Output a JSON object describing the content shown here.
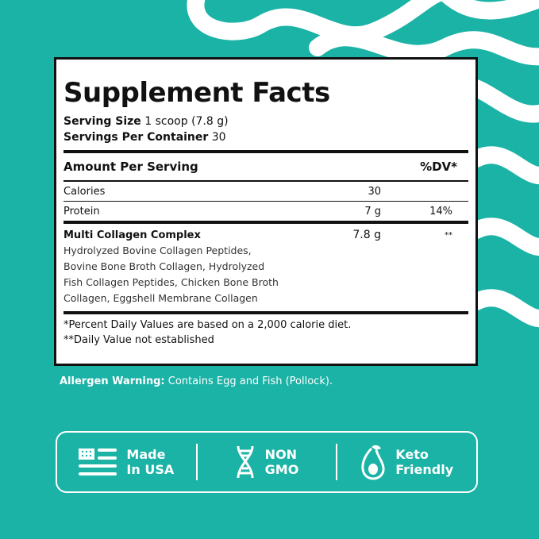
{
  "colors": {
    "background": "#1ab3a6",
    "panel": "#ffffff",
    "text": "#111111"
  },
  "facts": {
    "title": "Supplement Facts",
    "serving_size_label": "Serving Size",
    "serving_size_value": "1 scoop (7.8 g)",
    "servings_label": "Servings Per Container",
    "servings_value": "30",
    "header": {
      "amount": "Amount Per Serving",
      "dv": "%DV*"
    },
    "rows": [
      {
        "name": "Calories",
        "amount": "30",
        "dv": ""
      },
      {
        "name": "Protein",
        "amount": "7 g",
        "dv": "14%"
      }
    ],
    "complex": {
      "name": "Multi Collagen Complex",
      "amount": "7.8 g",
      "dv": "**",
      "ingredients": [
        "Hydrolyzed Bovine Collagen Peptides,",
        "Bovine Bone Broth Collagen, Hydrolyzed",
        "Fish Collagen Peptides, Chicken Bone Broth",
        "Collagen, Eggshell Membrane Collagen"
      ]
    },
    "footnotes": [
      "*Percent Daily Values are based on a 2,000 calorie diet.",
      "**Daily Value not established"
    ]
  },
  "allergen": {
    "label": "Allergen Warning:",
    "text": "Contains Egg and Fish (Pollock)."
  },
  "badges": [
    {
      "icon": "us-flag-icon",
      "line1": "Made",
      "line2": "In USA"
    },
    {
      "icon": "dna-icon",
      "line1": "NON",
      "line2": "GMO"
    },
    {
      "icon": "avocado-icon",
      "line1": "Keto",
      "line2": "Friendly"
    }
  ]
}
